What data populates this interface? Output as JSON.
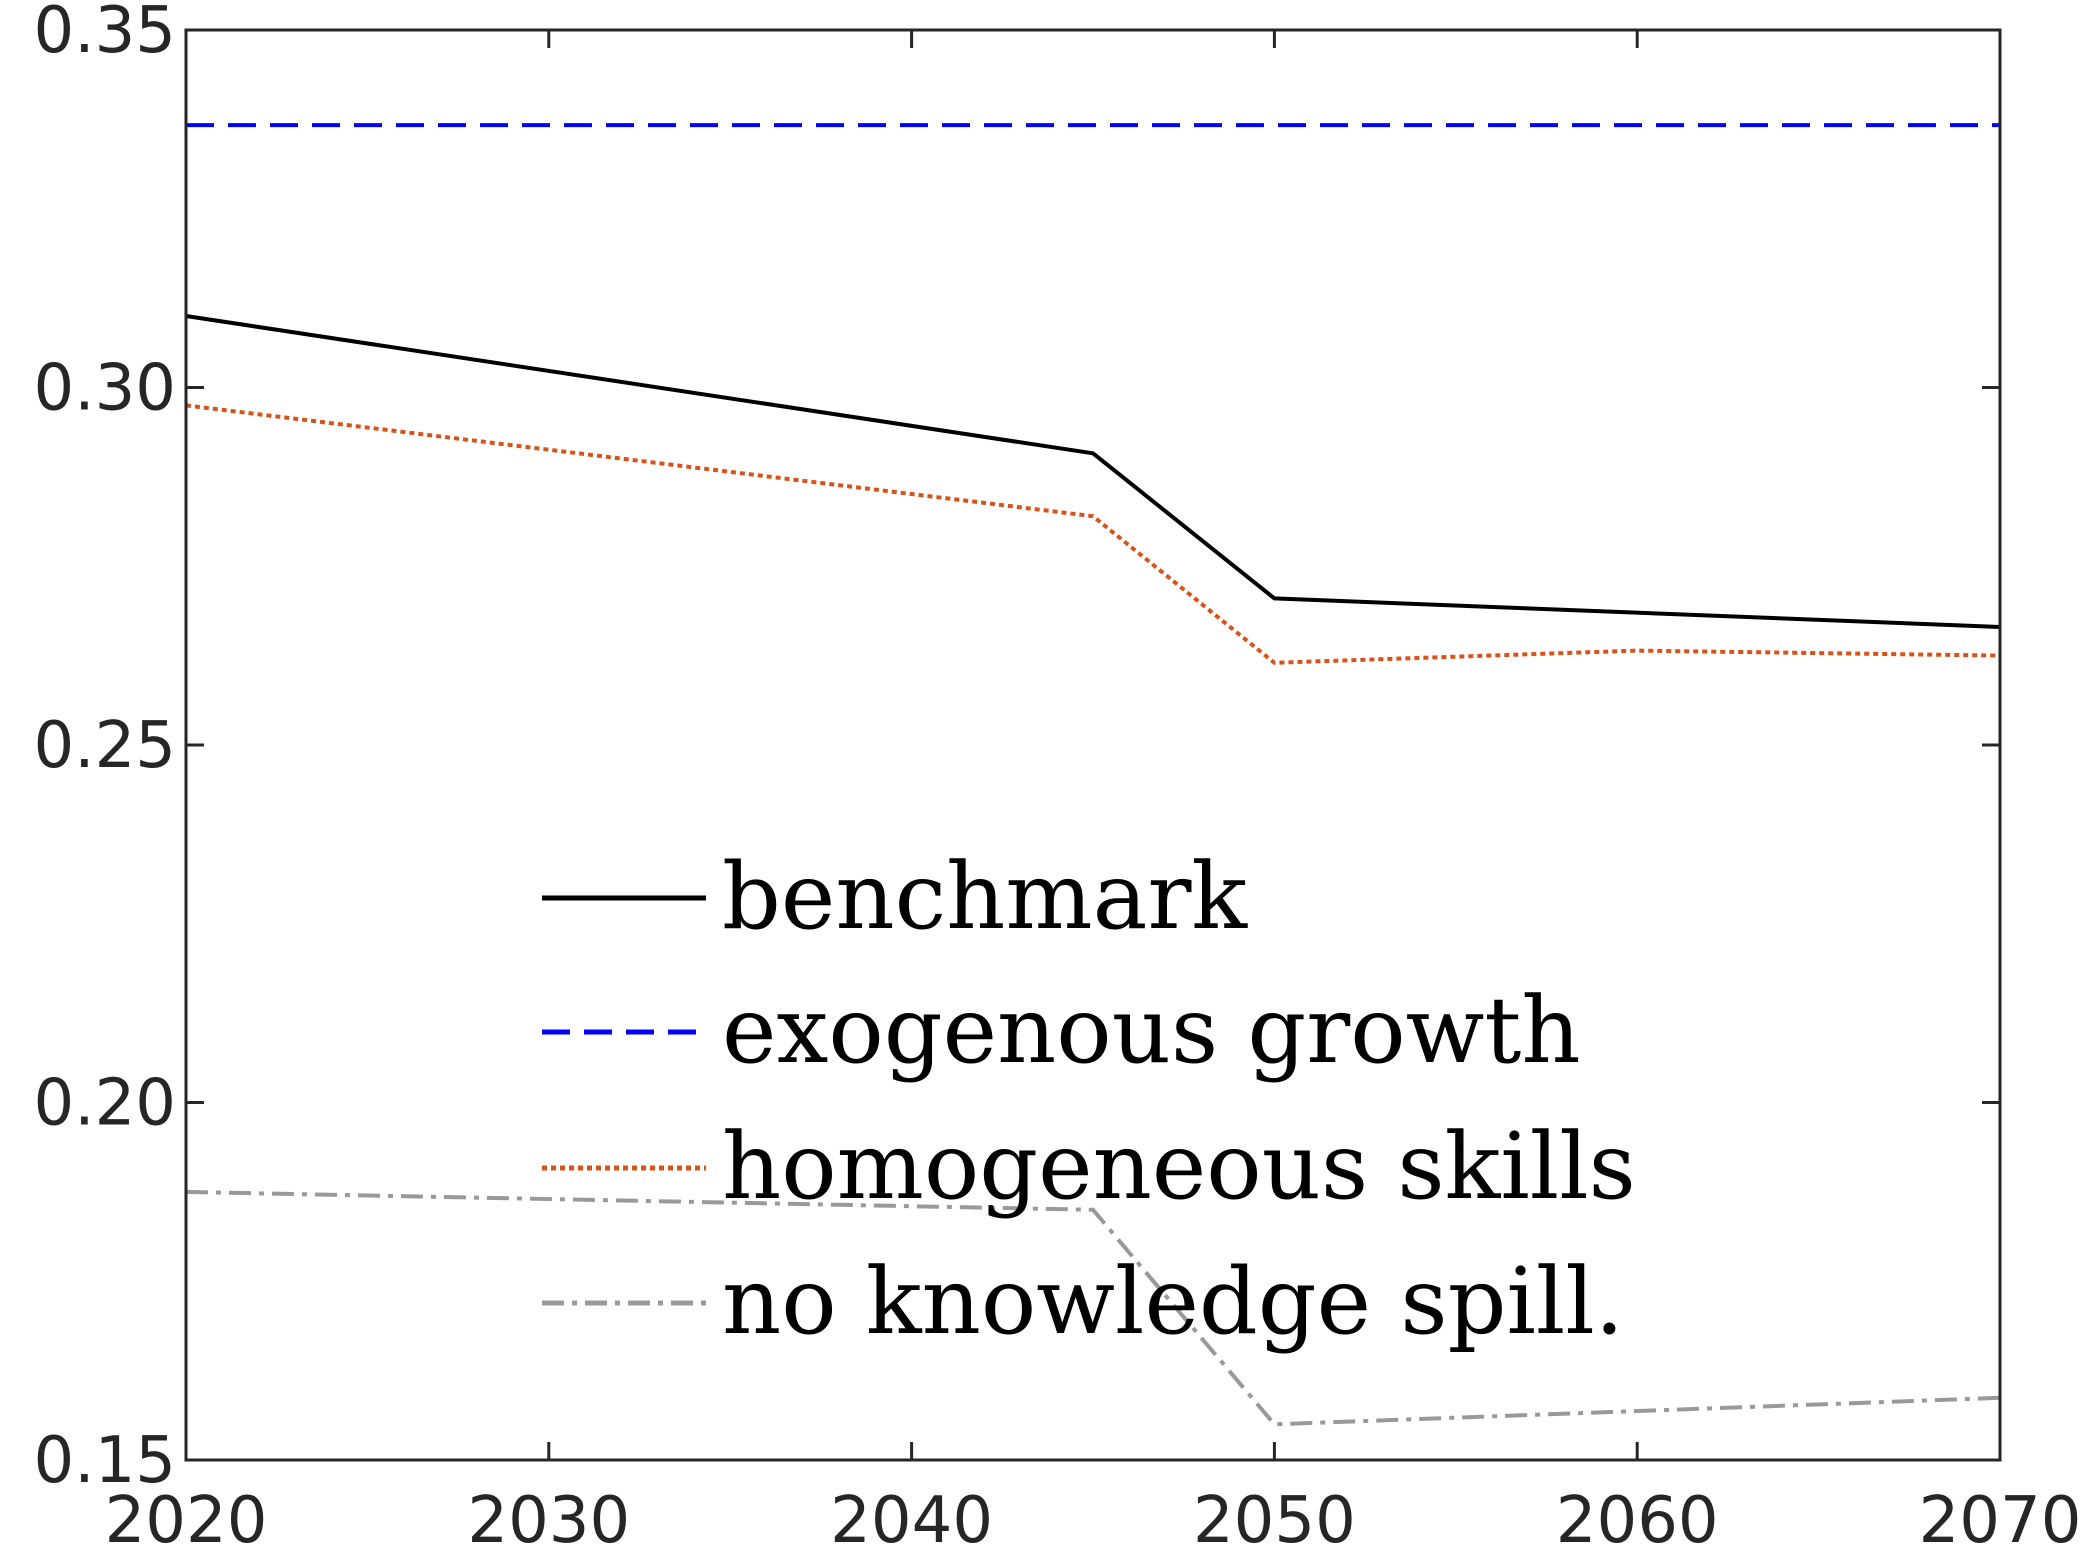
{
  "chart_data": {
    "type": "line",
    "title": "",
    "xlabel": "",
    "ylabel": "",
    "xlim": [
      2020,
      2070
    ],
    "ylim": [
      0.15,
      0.35
    ],
    "x_ticks": [
      2020,
      2030,
      2040,
      2050,
      2060,
      2070
    ],
    "y_ticks": [
      0.15,
      0.2,
      0.25,
      0.3,
      0.35
    ],
    "x_tick_labels": [
      "2020",
      "2030",
      "2040",
      "2050",
      "2060",
      "2070"
    ],
    "y_tick_labels": [
      "0.15",
      "0.20",
      "0.25",
      "0.30",
      "0.35"
    ],
    "grid": false,
    "legend_position": "lower-center",
    "series": [
      {
        "name": "benchmark",
        "color": "#000000",
        "style": "solid",
        "x": [
          2020,
          2045,
          2050,
          2070
        ],
        "y": [
          0.31,
          0.2908,
          0.2705,
          0.2665
        ]
      },
      {
        "name": "exogenous growth",
        "color": "#0000ff",
        "style": "dashed",
        "x": [
          2020,
          2070
        ],
        "y": [
          0.3367,
          0.3367
        ]
      },
      {
        "name": "homogeneous skills",
        "color": "#d95319",
        "style": "dotted",
        "x": [
          2020,
          2045,
          2050,
          2060,
          2070
        ],
        "y": [
          0.2975,
          0.282,
          0.2615,
          0.2632,
          0.2625
        ]
      },
      {
        "name": "no knowledge spill.",
        "color": "#999999",
        "style": "dashdot",
        "x": [
          2020,
          2045,
          2050,
          2070
        ],
        "y": [
          0.1875,
          0.185,
          0.155,
          0.1587
        ]
      }
    ]
  }
}
